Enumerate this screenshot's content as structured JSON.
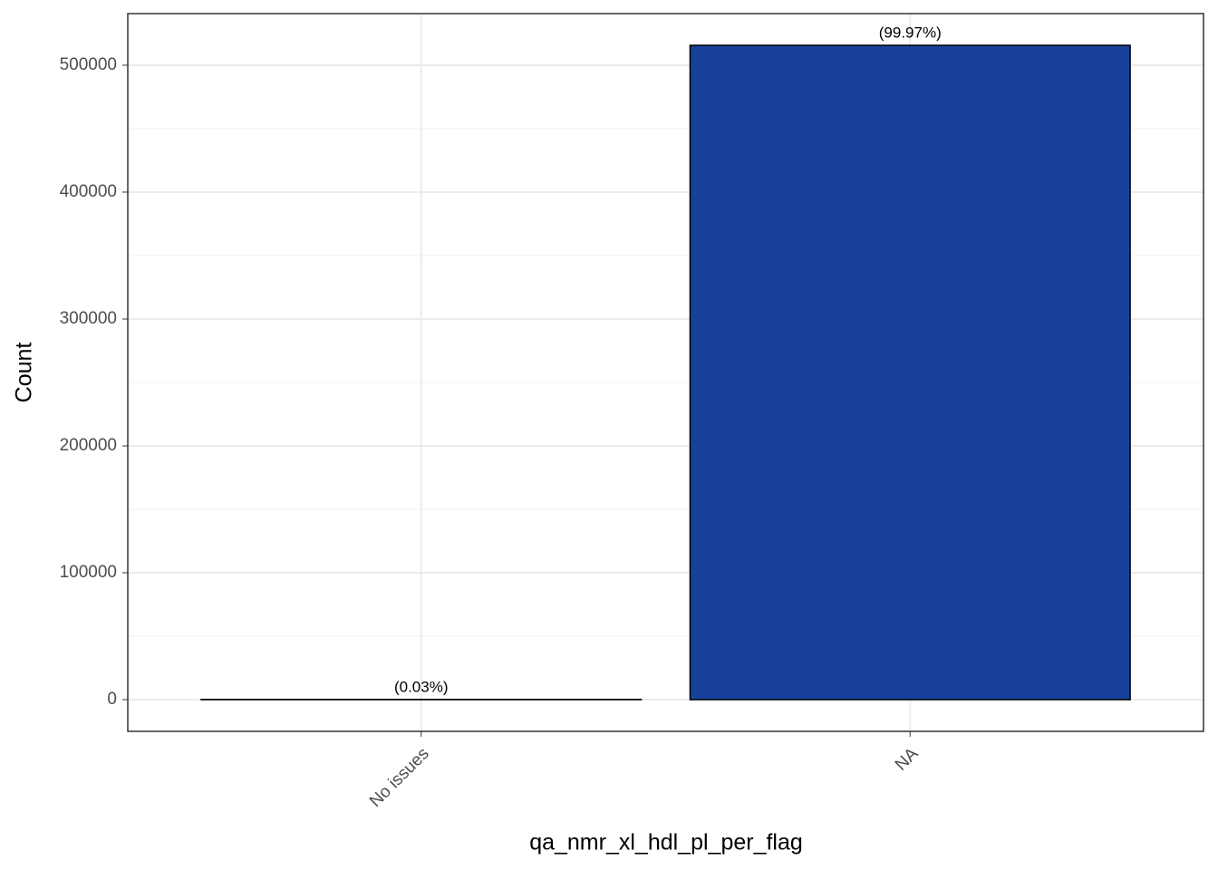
{
  "chart_data": {
    "type": "bar",
    "x_label": "qa_nmr_xl_hdl_pl_per_flag",
    "y_label": "Count",
    "categories": [
      "No issues",
      "NA"
    ],
    "values": [
      155,
      515700
    ],
    "bar_labels": [
      "(0.03%)",
      "(99.97%)"
    ],
    "color": "#17419a",
    "edge_color": "#000000",
    "ylim": [
      -25000,
      540700
    ],
    "yticks": [
      0,
      100000,
      200000,
      300000,
      400000,
      500000
    ],
    "grid": true
  }
}
